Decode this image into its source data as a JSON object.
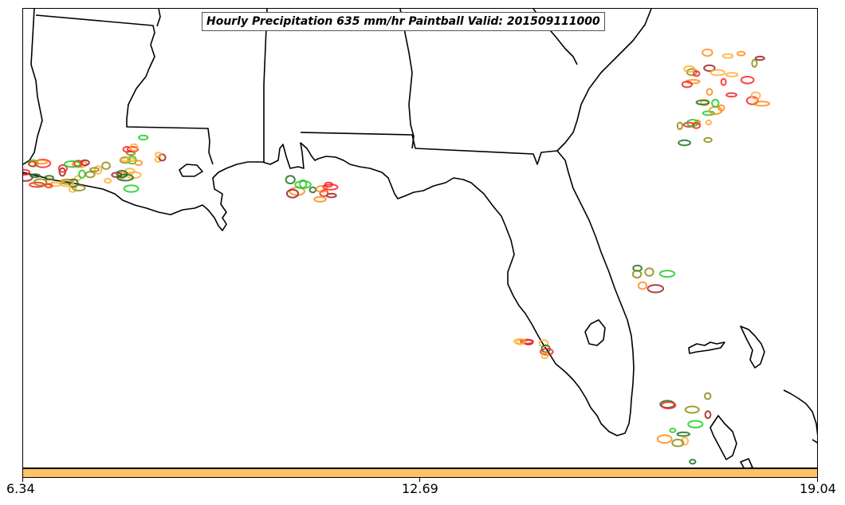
{
  "title": "Hourly Precipitation 635 mm/hr Paintball Valid: 201509111000",
  "colorbar": {
    "color": "#ffc266",
    "ticks": [
      "6.34",
      "12.69",
      "19.04"
    ]
  },
  "map": {
    "land_outline_color": "#000000",
    "background": "#ffffff"
  },
  "palette": {
    "red": "#ff2020",
    "dark_red": "#a02020",
    "orange": "#ff8c1a",
    "light_orange": "#ffb030",
    "green": "#20cc20",
    "dark_green": "#207020",
    "olive": "#8c8c14"
  }
}
